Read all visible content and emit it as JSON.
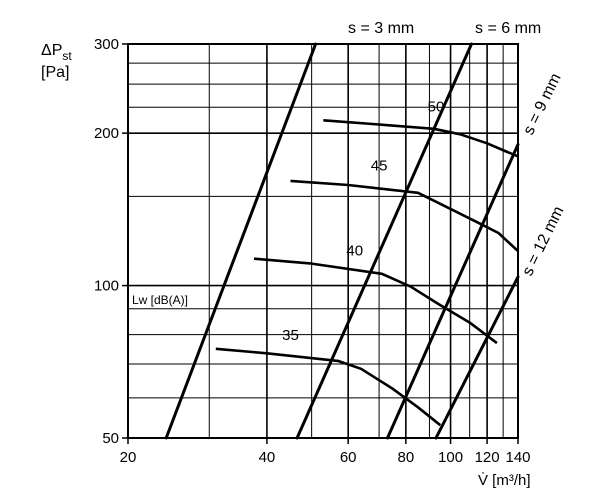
{
  "chart_data": {
    "type": "line",
    "x_scale": "log",
    "y_scale": "log",
    "xlim": [
      20,
      140
    ],
    "ylim": [
      50,
      300
    ],
    "grid": true,
    "ylabel": {
      "main": "ΔP",
      "sub": "st",
      "unit": "[Pa]"
    },
    "xlabel": "V̇ [m³/h]",
    "series_label": "Lw [dB(A)]",
    "x_ticks": [
      {
        "v": 20,
        "label": "20"
      },
      {
        "v": 40,
        "label": "40"
      },
      {
        "v": 60,
        "label": "60"
      },
      {
        "v": 80,
        "label": "80"
      },
      {
        "v": 100,
        "label": "100"
      },
      {
        "v": 120,
        "label": "120"
      },
      {
        "v": 140,
        "label": "140"
      }
    ],
    "y_ticks": [
      {
        "v": 50,
        "label": "50"
      },
      {
        "v": 100,
        "label": "100"
      },
      {
        "v": 200,
        "label": "200"
      },
      {
        "v": 300,
        "label": "300"
      }
    ],
    "x_grid": [
      30,
      40,
      50,
      60,
      70,
      80,
      90,
      100,
      110,
      120,
      130,
      140
    ],
    "y_grid": [
      60,
      70,
      80,
      90,
      100,
      150,
      200,
      225,
      250,
      275,
      300
    ],
    "lines": [
      {
        "name": "s = 3 mm",
        "label": "s = 3 mm",
        "points": [
          [
            24.2,
            50
          ],
          [
            51,
            300
          ]
        ]
      },
      {
        "name": "s = 6 mm",
        "label": "s = 6 mm",
        "points": [
          [
            46.5,
            50
          ],
          [
            111,
            300
          ]
        ]
      },
      {
        "name": "s = 9 mm",
        "label": "s = 9 mm",
        "points": [
          [
            73,
            50
          ],
          [
            140,
            190
          ]
        ]
      },
      {
        "name": "s = 12 mm",
        "label": "s = 12 mm",
        "points": [
          [
            93,
            50
          ],
          [
            140,
            104
          ]
        ]
      }
    ],
    "sound_curves": [
      {
        "name": "35",
        "label": "35",
        "label_at": [
          45,
          75
        ],
        "points": [
          [
            31,
            75
          ],
          [
            40,
            73.5
          ],
          [
            57,
            71
          ],
          [
            64,
            68.5
          ],
          [
            75,
            62.5
          ],
          [
            85,
            57.5
          ],
          [
            95,
            53
          ]
        ]
      },
      {
        "name": "40",
        "label": "40",
        "label_at": [
          62,
          110
        ],
        "points": [
          [
            37.5,
            113
          ],
          [
            50,
            110.5
          ],
          [
            71,
            105.5
          ],
          [
            82,
            99.5
          ],
          [
            94,
            92
          ],
          [
            110,
            84.5
          ],
          [
            126,
            77
          ]
        ]
      },
      {
        "name": "45",
        "label": "45",
        "label_at": [
          70,
          162
        ],
        "points": [
          [
            45,
            161
          ],
          [
            60,
            158
          ],
          [
            85,
            152.5
          ],
          [
            98,
            143
          ],
          [
            115,
            133
          ],
          [
            127,
            127
          ],
          [
            140,
            117
          ]
        ]
      },
      {
        "name": "50",
        "label": "50",
        "label_at": [
          93,
          212
        ],
        "points": [
          [
            53,
            212
          ],
          [
            70,
            208
          ],
          [
            92,
            204
          ],
          [
            105,
            199
          ],
          [
            120,
            191
          ],
          [
            132,
            184
          ],
          [
            140,
            180
          ]
        ]
      }
    ]
  }
}
